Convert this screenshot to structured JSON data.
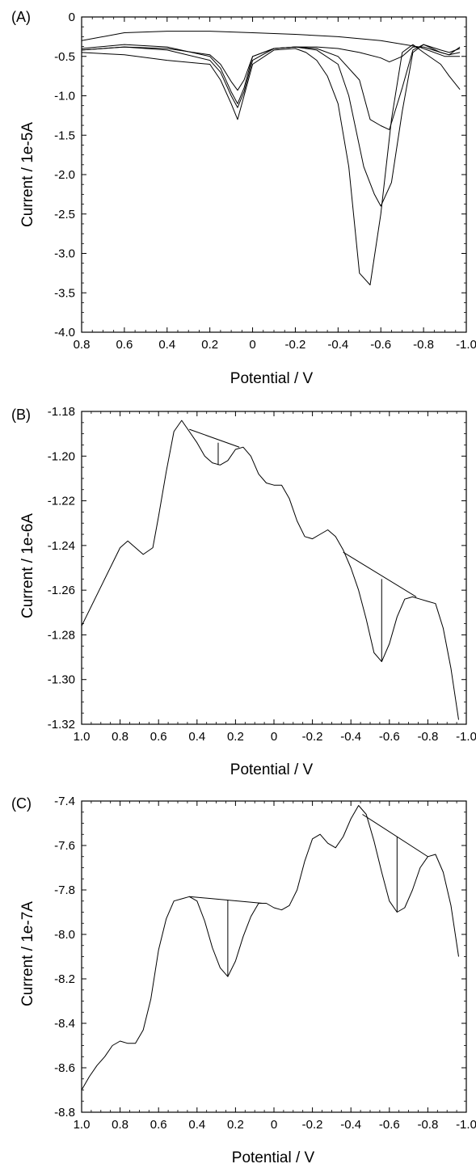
{
  "chart_data": [
    {
      "type": "line",
      "panel_label": "(A)",
      "xlabel": "Potential / V",
      "ylabel": "Current / 1e-5A",
      "xlim": [
        0.8,
        -1.0
      ],
      "ylim": [
        -4.0,
        0
      ],
      "x_ticks": [
        0.8,
        0.6,
        0.4,
        0.2,
        0,
        -0.2,
        -0.4,
        -0.6,
        -0.8,
        -1.0
      ],
      "x_tick_labels": [
        "0.8",
        "0.6",
        "0.4",
        "0.2",
        "0",
        "-0.2",
        "-0.4",
        "-0.6",
        "-0.8",
        "-1.0"
      ],
      "y_ticks": [
        0,
        -0.5,
        -1.0,
        -1.5,
        -2.0,
        -2.5,
        -3.0,
        -3.5,
        -4.0
      ],
      "y_tick_labels": [
        "0",
        "-0.5",
        "-1.0",
        "-1.5",
        "-2.0",
        "-2.5",
        "-3.0",
        "-3.5",
        "-4.0"
      ],
      "grid": false,
      "color": "#000000",
      "series": [
        {
          "x": [
            0.8,
            0.6,
            0.4,
            0.2,
            0.0,
            -0.2,
            -0.4,
            -0.6,
            -0.78,
            -0.9,
            -0.97
          ],
          "y": [
            -0.3,
            -0.2,
            -0.18,
            -0.18,
            -0.2,
            -0.22,
            -0.25,
            -0.3,
            -0.38,
            -0.5,
            -0.5
          ]
        },
        {
          "x": [
            0.8,
            0.6,
            0.4,
            0.2,
            0.15,
            0.1,
            0.07,
            0.04,
            0.0,
            -0.1,
            -0.2,
            -0.3,
            -0.4,
            -0.5,
            -0.6,
            -0.64,
            -0.7,
            -0.75,
            -0.8,
            -0.88,
            -0.92,
            -0.97
          ],
          "y": [
            -0.42,
            -0.38,
            -0.4,
            -0.48,
            -0.6,
            -0.82,
            -0.93,
            -0.8,
            -0.5,
            -0.4,
            -0.38,
            -0.38,
            -0.4,
            -0.45,
            -0.52,
            -0.57,
            -0.5,
            -0.38,
            -0.38,
            -0.45,
            -0.48,
            -0.45
          ]
        },
        {
          "x": [
            0.8,
            0.6,
            0.4,
            0.2,
            0.15,
            0.1,
            0.07,
            0.04,
            0.0,
            -0.1,
            -0.2,
            -0.3,
            -0.4,
            -0.5,
            -0.55,
            -0.6,
            -0.64,
            -0.7,
            -0.75,
            -0.8,
            -0.88,
            -0.92,
            -0.97
          ],
          "y": [
            -0.4,
            -0.35,
            -0.38,
            -0.5,
            -0.65,
            -0.95,
            -1.1,
            -0.9,
            -0.5,
            -0.4,
            -0.38,
            -0.4,
            -0.5,
            -0.8,
            -1.3,
            -1.38,
            -1.43,
            -0.9,
            -0.42,
            -0.35,
            -0.42,
            -0.45,
            -0.4
          ]
        },
        {
          "x": [
            0.8,
            0.6,
            0.4,
            0.2,
            0.15,
            0.1,
            0.07,
            0.04,
            0.0,
            -0.1,
            -0.2,
            -0.3,
            -0.4,
            -0.45,
            -0.52,
            -0.57,
            -0.6,
            -0.65,
            -0.7,
            -0.75,
            -0.8,
            -0.88,
            -0.92,
            -0.97
          ],
          "y": [
            -0.42,
            -0.38,
            -0.42,
            -0.55,
            -0.7,
            -1.0,
            -1.15,
            -0.95,
            -0.55,
            -0.4,
            -0.38,
            -0.42,
            -0.6,
            -1.0,
            -1.9,
            -2.25,
            -2.4,
            -2.1,
            -1.2,
            -0.45,
            -0.35,
            -0.45,
            -0.48,
            -0.38
          ]
        },
        {
          "x": [
            0.8,
            0.6,
            0.4,
            0.2,
            0.15,
            0.1,
            0.07,
            0.04,
            0.0,
            -0.1,
            -0.2,
            -0.25,
            -0.3,
            -0.35,
            -0.4,
            -0.45,
            -0.5,
            -0.55,
            -0.6,
            -0.65,
            -0.7,
            -0.75,
            -0.8,
            -0.88,
            -0.92,
            -0.97
          ],
          "y": [
            -0.45,
            -0.48,
            -0.55,
            -0.6,
            -0.8,
            -1.1,
            -1.3,
            -1.0,
            -0.6,
            -0.42,
            -0.4,
            -0.45,
            -0.55,
            -0.75,
            -1.1,
            -1.9,
            -3.25,
            -3.4,
            -2.5,
            -1.3,
            -0.45,
            -0.35,
            -0.45,
            -0.6,
            -0.75,
            -0.92
          ]
        }
      ]
    },
    {
      "type": "line",
      "panel_label": "(B)",
      "xlabel": "Potential / V",
      "ylabel": "Current / 1e-6A",
      "xlim": [
        1.0,
        -1.0
      ],
      "ylim": [
        -1.32,
        -1.18
      ],
      "x_ticks": [
        1.0,
        0.8,
        0.6,
        0.4,
        0.2,
        0,
        -0.2,
        -0.4,
        -0.6,
        -0.8,
        -1.0
      ],
      "x_tick_labels": [
        "1.0",
        "0.8",
        "0.6",
        "0.4",
        "0.2",
        "0",
        "-0.2",
        "-0.4",
        "-0.6",
        "-0.8",
        "-1.0"
      ],
      "y_ticks": [
        -1.18,
        -1.2,
        -1.22,
        -1.24,
        -1.26,
        -1.28,
        -1.3,
        -1.32
      ],
      "y_tick_labels": [
        "-1.18",
        "-1.20",
        "-1.22",
        "-1.24",
        "-1.26",
        "-1.28",
        "-1.30",
        "-1.32"
      ],
      "grid": false,
      "color": "#000000",
      "series": [
        {
          "x": [
            1.0,
            0.8,
            0.76,
            0.68,
            0.63,
            0.6,
            0.56,
            0.52,
            0.48,
            0.44,
            0.4,
            0.36,
            0.32,
            0.28,
            0.24,
            0.2,
            0.16,
            0.12,
            0.08,
            0.04,
            0.0,
            -0.04,
            -0.08,
            -0.12,
            -0.16,
            -0.2,
            -0.24,
            -0.28,
            -0.32,
            -0.36,
            -0.4,
            -0.44,
            -0.48,
            -0.52,
            -0.56,
            -0.6,
            -0.64,
            -0.68,
            -0.72,
            -0.76,
            -0.8,
            -0.84,
            -0.88,
            -0.92,
            -0.96
          ],
          "y": [
            -1.276,
            -1.241,
            -1.238,
            -1.244,
            -1.241,
            -1.227,
            -1.207,
            -1.189,
            -1.184,
            -1.189,
            -1.194,
            -1.2,
            -1.203,
            -1.204,
            -1.202,
            -1.197,
            -1.196,
            -1.2,
            -1.208,
            -1.212,
            -1.213,
            -1.213,
            -1.219,
            -1.229,
            -1.236,
            -1.237,
            -1.235,
            -1.233,
            -1.236,
            -1.242,
            -1.25,
            -1.26,
            -1.273,
            -1.288,
            -1.292,
            -1.284,
            -1.272,
            -1.264,
            -1.263,
            -1.264,
            -1.265,
            -1.266,
            -1.277,
            -1.295,
            -1.318
          ]
        }
      ],
      "baselines": [
        {
          "x": [
            0.44,
            0.18
          ],
          "y": [
            -1.188,
            -1.196
          ]
        },
        {
          "x": [
            -0.36,
            -0.74
          ],
          "y": [
            -1.243,
            -1.263
          ]
        }
      ],
      "peak_markers": [
        {
          "x": 0.29,
          "y_top": -1.194,
          "y_bottom": -1.204
        },
        {
          "x": -0.56,
          "y_top": -1.255,
          "y_bottom": -1.292
        }
      ]
    },
    {
      "type": "line",
      "panel_label": "(C)",
      "xlabel": "Potential / V",
      "ylabel": "Current / 1e-7A",
      "xlim": [
        1.0,
        -1.0
      ],
      "ylim": [
        -8.8,
        -7.4
      ],
      "x_ticks": [
        1.0,
        0.8,
        0.6,
        0.4,
        0.2,
        0,
        -0.2,
        -0.4,
        -0.6,
        -0.8,
        -1.0
      ],
      "x_tick_labels": [
        "1.0",
        "0.8",
        "0.6",
        "0.4",
        "0.2",
        "0",
        "-0.2",
        "-0.4",
        "-0.6",
        "-0.8",
        "-1.0"
      ],
      "y_ticks": [
        -7.4,
        -7.6,
        -7.8,
        -8.0,
        -8.2,
        -8.4,
        -8.6,
        -8.8
      ],
      "y_tick_labels": [
        "-7.4",
        "-7.6",
        "-7.8",
        "-8.0",
        "-8.2",
        "-8.4",
        "-8.6",
        "-8.8"
      ],
      "grid": false,
      "color": "#000000",
      "series": [
        {
          "x": [
            1.0,
            0.96,
            0.92,
            0.88,
            0.84,
            0.8,
            0.76,
            0.72,
            0.68,
            0.64,
            0.6,
            0.56,
            0.52,
            0.48,
            0.44,
            0.4,
            0.36,
            0.32,
            0.28,
            0.24,
            0.2,
            0.16,
            0.12,
            0.08,
            0.04,
            0.0,
            -0.04,
            -0.08,
            -0.12,
            -0.16,
            -0.2,
            -0.24,
            -0.28,
            -0.32,
            -0.36,
            -0.4,
            -0.44,
            -0.48,
            -0.52,
            -0.56,
            -0.6,
            -0.64,
            -0.68,
            -0.72,
            -0.76,
            -0.8,
            -0.84,
            -0.88,
            -0.92,
            -0.96
          ],
          "y": [
            -8.7,
            -8.64,
            -8.59,
            -8.55,
            -8.5,
            -8.48,
            -8.49,
            -8.49,
            -8.43,
            -8.29,
            -8.07,
            -7.93,
            -7.85,
            -7.84,
            -7.83,
            -7.85,
            -7.94,
            -8.06,
            -8.15,
            -8.19,
            -8.12,
            -8.01,
            -7.92,
            -7.86,
            -7.86,
            -7.88,
            -7.89,
            -7.87,
            -7.8,
            -7.67,
            -7.57,
            -7.55,
            -7.59,
            -7.61,
            -7.56,
            -7.48,
            -7.42,
            -7.46,
            -7.58,
            -7.72,
            -7.85,
            -7.9,
            -7.88,
            -7.8,
            -7.7,
            -7.65,
            -7.64,
            -7.72,
            -7.87,
            -8.1
          ]
        }
      ],
      "baselines": [
        {
          "x": [
            0.44,
            0.06
          ],
          "y": [
            -7.83,
            -7.86
          ]
        },
        {
          "x": [
            -0.46,
            -0.8
          ],
          "y": [
            -7.46,
            -7.65
          ]
        }
      ],
      "peak_markers": [
        {
          "x": 0.24,
          "y_top": -7.845,
          "y_bottom": -8.19
        },
        {
          "x": -0.64,
          "y_top": -7.56,
          "y_bottom": -7.9
        }
      ]
    }
  ]
}
